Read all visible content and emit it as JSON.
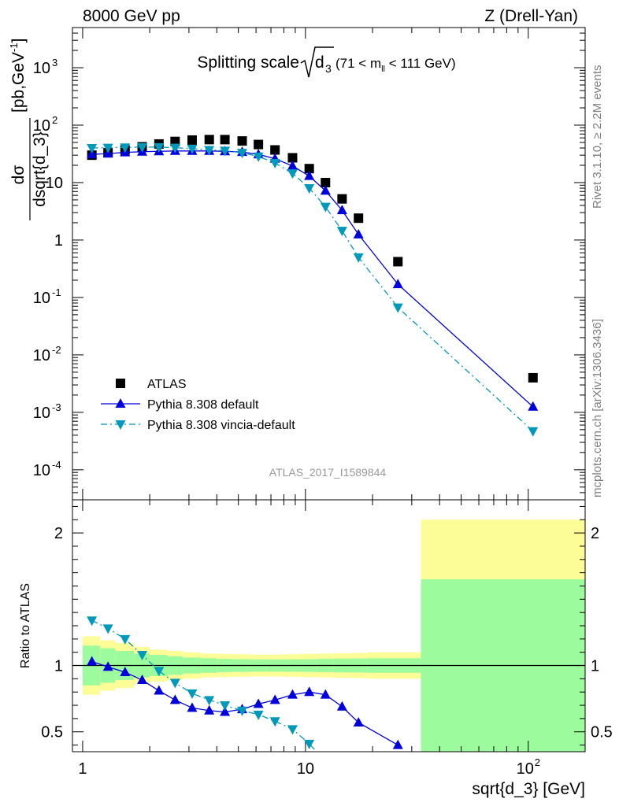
{
  "header": {
    "left": "8000 GeV pp",
    "right": "Z (Drell-Yan)"
  },
  "side": {
    "rivet": "Rivet 3.1.10, ≥ 2.2M events",
    "mcplots": "mcplots.cern.ch [arXiv:1306.3436]"
  },
  "watermark": "ATLAS_2017_I1589844",
  "colors": {
    "atlas": "#000000",
    "pythia": "#0000dd",
    "vincia": "#0099bb",
    "band_inner": "#9cfb9c",
    "band_outer": "#fdfd98"
  },
  "chart_data": [
    {
      "type": "scatter",
      "panel": "main",
      "title": "Splitting scale √d3 (71 < m_ll < 111 GeV)",
      "title_parts": {
        "main": "Splitting scale",
        "sub": "3",
        "extra": "(71 < m",
        "extra_sub": "ll",
        "extra_tail": " < 111 GeV)"
      },
      "ylabel": "dσ/dsqrt{d_3} [pb,GeV⁻¹]",
      "ylabel_parts": {
        "num": "dσ",
        "den": "dsqrt{d_3}",
        "unit_pre": "[pb,GeV",
        "unit_sup": "-1",
        "unit_post": "]"
      },
      "x_scale": "log",
      "y_scale": "log",
      "xlim": [
        0.9,
        180
      ],
      "ylim": [
        3e-05,
        5000
      ],
      "y_ticks": [
        {
          "v": 0.0001,
          "base": "10",
          "exp": "-4"
        },
        {
          "v": 0.001,
          "base": "10",
          "exp": "-3"
        },
        {
          "v": 0.01,
          "base": "10",
          "exp": "-2"
        },
        {
          "v": 0.1,
          "base": "10",
          "exp": "-1"
        },
        {
          "v": 1,
          "base": "1",
          "exp": ""
        },
        {
          "v": 10,
          "base": "10",
          "exp": ""
        },
        {
          "v": 100,
          "base": "10",
          "exp": "2"
        },
        {
          "v": 1000,
          "base": "10",
          "exp": "3"
        }
      ],
      "legend": {
        "position": "bottom-left"
      },
      "series": [
        {
          "name": "ATLAS",
          "marker": "square",
          "style": "points",
          "x": [
            1.1,
            1.3,
            1.55,
            1.85,
            2.2,
            2.6,
            3.1,
            3.7,
            4.35,
            5.2,
            6.15,
            7.3,
            8.75,
            10.4,
            12.3,
            14.6,
            17.3,
            26,
            105
          ],
          "y": [
            30,
            33,
            37,
            42,
            47,
            52,
            55,
            56,
            56,
            53,
            46,
            37,
            27,
            17.5,
            10,
            5.2,
            2.4,
            0.42,
            0.004
          ]
        },
        {
          "name": "Pythia 8.308 default",
          "marker": "triangle-up",
          "style": "solid",
          "x": [
            1.1,
            1.3,
            1.55,
            1.85,
            2.2,
            2.6,
            3.1,
            3.7,
            4.35,
            5.2,
            6.15,
            7.3,
            8.75,
            10.4,
            12.3,
            14.6,
            17.3,
            26,
            105
          ],
          "y": [
            31,
            32,
            33.5,
            34.5,
            35,
            35.5,
            35.5,
            35.5,
            35,
            34,
            31,
            26,
            19.5,
            13,
            7.2,
            3.3,
            1.25,
            0.17,
            0.00125
          ]
        },
        {
          "name": "Pythia 8.308 vincia-default",
          "marker": "triangle-down",
          "style": "dashdot",
          "x": [
            1.1,
            1.3,
            1.55,
            1.85,
            2.2,
            2.6,
            3.1,
            3.7,
            4.35,
            5.2,
            6.15,
            7.3,
            8.75,
            10.4,
            12.3,
            14.6,
            17.3,
            26,
            105
          ],
          "y": [
            40,
            40.5,
            41,
            41.5,
            41.5,
            40.5,
            39,
            37,
            36,
            33,
            28.5,
            22,
            14.5,
            8,
            3.8,
            1.45,
            0.5,
            0.067,
            0.00047
          ]
        }
      ]
    },
    {
      "type": "line",
      "panel": "ratio",
      "ylabel": "Ratio to ATLAS",
      "xlabel": "sqrt{d_3} [GeV]",
      "x_scale": "log",
      "xlim": [
        0.9,
        180
      ],
      "ylim": [
        0.35,
        2.25
      ],
      "x_ticks": [
        {
          "v": 1,
          "base": "1",
          "exp": ""
        },
        {
          "v": 10,
          "base": "10",
          "exp": ""
        },
        {
          "v": 100,
          "base": "10",
          "exp": "2"
        }
      ],
      "y_ticks": [
        {
          "v": 0.5,
          "label": "0.5"
        },
        {
          "v": 1,
          "label": "1"
        },
        {
          "v": 2,
          "label": "2"
        }
      ],
      "reference_line": 1,
      "bands": {
        "edges": [
          1,
          1.2,
          1.4,
          1.7,
          2.0,
          2.4,
          2.8,
          3.4,
          4.0,
          4.7,
          5.6,
          6.7,
          8.0,
          9.5,
          11.3,
          13.4,
          16.0,
          19.0,
          33,
          180
        ],
        "inner": [
          0.15,
          0.13,
          0.11,
          0.09,
          0.08,
          0.07,
          0.06,
          0.055,
          0.05,
          0.048,
          0.046,
          0.046,
          0.047,
          0.048,
          0.05,
          0.052,
          0.053,
          0.055,
          0.65
        ],
        "outer": [
          0.22,
          0.19,
          0.17,
          0.14,
          0.12,
          0.11,
          0.1,
          0.09,
          0.088,
          0.085,
          0.083,
          0.083,
          0.085,
          0.088,
          0.09,
          0.093,
          0.095,
          0.1,
          1.1
        ]
      },
      "series": [
        {
          "name": "Pythia 8.308 default",
          "marker": "triangle-up",
          "style": "solid",
          "x": [
            1.1,
            1.3,
            1.55,
            1.85,
            2.2,
            2.6,
            3.1,
            3.7,
            4.35,
            5.2,
            6.15,
            7.3,
            8.75,
            10.4,
            12.3,
            14.6,
            17.3,
            26
          ],
          "y": [
            1.03,
            0.99,
            0.95,
            0.89,
            0.81,
            0.74,
            0.68,
            0.66,
            0.65,
            0.67,
            0.71,
            0.74,
            0.78,
            0.8,
            0.78,
            0.69,
            0.57,
            0.4
          ]
        },
        {
          "name": "Pythia 8.308 vincia-default",
          "marker": "triangle-down",
          "style": "dashdot",
          "x": [
            1.1,
            1.3,
            1.55,
            1.85,
            2.2,
            2.6,
            3.1,
            3.7,
            4.35,
            5.2,
            6.15,
            7.3,
            8.75,
            10.4,
            11.5
          ],
          "y": [
            1.34,
            1.28,
            1.2,
            1.08,
            0.96,
            0.87,
            0.79,
            0.74,
            0.7,
            0.66,
            0.63,
            0.58,
            0.52,
            0.41,
            0.33
          ]
        }
      ]
    }
  ]
}
